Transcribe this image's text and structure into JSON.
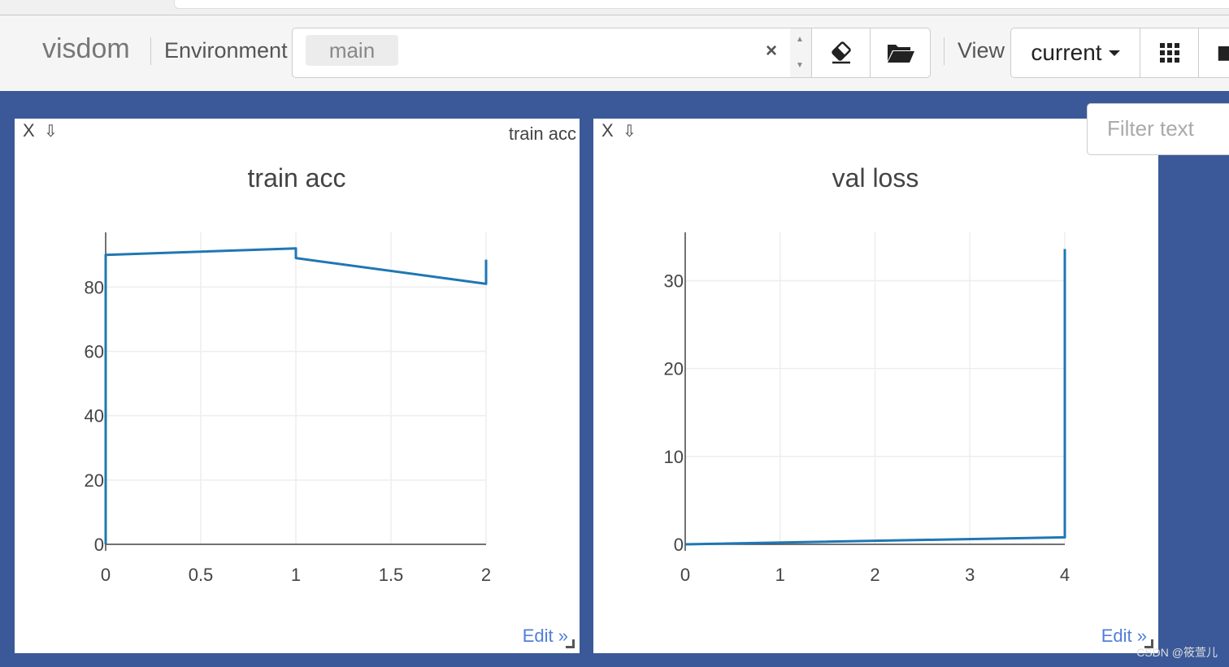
{
  "navbar": {
    "brand": "visdom",
    "environment_label": "Environment",
    "environment_chip": "main",
    "clear_symbol": "×",
    "view_label": "View",
    "view_value": "current"
  },
  "filter": {
    "placeholder": "Filter text"
  },
  "panels": [
    {
      "id": "train-acc",
      "close": "X",
      "download": "⇩",
      "window_title": "train acc",
      "edit": "Edit »"
    },
    {
      "id": "val-loss",
      "close": "X",
      "download": "⇩",
      "window_title": "",
      "edit": "Edit »"
    }
  ],
  "chart_data": [
    {
      "type": "line",
      "title": "train acc",
      "xlabel": "",
      "ylabel": "",
      "xlim": [
        0,
        2
      ],
      "ylim": [
        0,
        97
      ],
      "xticks": [
        0,
        0.5,
        1,
        1.5,
        2
      ],
      "xtick_labels": [
        "0",
        "0.5",
        "1",
        "1.5",
        "2"
      ],
      "yticks": [
        0,
        20,
        40,
        60,
        80
      ],
      "ytick_labels": [
        "0",
        "20",
        "40",
        "60",
        "80"
      ],
      "grid": true,
      "color": "#1f77b4",
      "x": [
        0,
        0,
        1,
        1,
        2,
        2
      ],
      "y": [
        0,
        90,
        92,
        89,
        81,
        88.5
      ]
    },
    {
      "type": "line",
      "title": "val loss",
      "xlabel": "",
      "ylabel": "",
      "xlim": [
        0,
        4
      ],
      "ylim": [
        0,
        35.5
      ],
      "xticks": [
        0,
        1,
        2,
        3,
        4
      ],
      "xtick_labels": [
        "0",
        "1",
        "2",
        "3",
        "4"
      ],
      "yticks": [
        0,
        10,
        20,
        30
      ],
      "ytick_labels": [
        "0",
        "10",
        "20",
        "30"
      ],
      "grid": true,
      "color": "#1f77b4",
      "x": [
        0,
        4,
        4
      ],
      "y": [
        0,
        0.8,
        33.6
      ]
    }
  ],
  "watermark": "CSDN @筱萱儿"
}
